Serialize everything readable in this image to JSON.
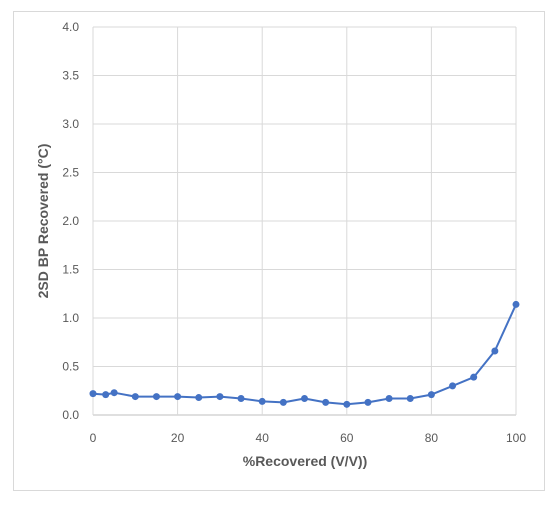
{
  "chart_data": {
    "type": "line",
    "title": "",
    "xlabel": "%Recovered (V/V))",
    "ylabel": "2SD BP Recovered (°C)",
    "xlim": [
      0,
      100
    ],
    "ylim": [
      0,
      4.0
    ],
    "x_ticks": [
      "0",
      "20",
      "40",
      "60",
      "80",
      "100"
    ],
    "y_ticks": [
      "0.0",
      "0.5",
      "1.0",
      "1.5",
      "2.0",
      "2.5",
      "3.0",
      "3.5",
      "4.0"
    ],
    "grid": true,
    "legend": "none",
    "series": [
      {
        "color": "#4472c4",
        "x": [
          0,
          3,
          5,
          10,
          15,
          20,
          25,
          30,
          35,
          40,
          45,
          50,
          55,
          60,
          65,
          70,
          75,
          80,
          85,
          90,
          95,
          100
        ],
        "y": [
          0.22,
          0.21,
          0.23,
          0.19,
          0.19,
          0.19,
          0.18,
          0.19,
          0.17,
          0.14,
          0.13,
          0.17,
          0.13,
          0.11,
          0.13,
          0.17,
          0.17,
          0.21,
          0.3,
          0.39,
          0.66,
          1.14
        ]
      }
    ]
  }
}
